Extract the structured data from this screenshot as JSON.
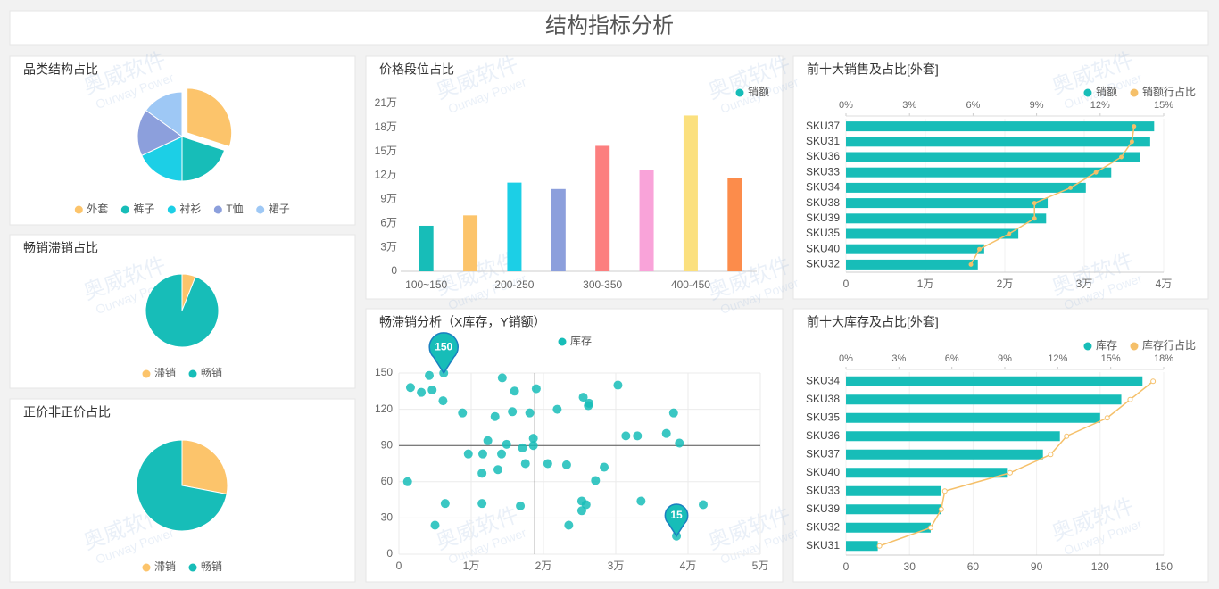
{
  "title": "结构指标分析",
  "watermark": {
    "brand": "奥威软件",
    "sub": "Ourway Power"
  },
  "chart_data": [
    {
      "type": "pie",
      "title": "品类结构占比",
      "categories": [
        "外套",
        "裤子",
        "衬衫",
        "T恤",
        "裙子"
      ],
      "values": [
        30,
        20,
        18,
        17,
        15
      ],
      "colors": [
        "#fcc46b",
        "#17bdb8",
        "#1ccfe6",
        "#8c9fdc",
        "#9ec8f5"
      ],
      "explode_first": true
    },
    {
      "type": "pie",
      "title": "畅销滞销占比",
      "categories": [
        "滞销",
        "畅销"
      ],
      "values": [
        6,
        94
      ],
      "colors": [
        "#fcc46b",
        "#17bdb8"
      ]
    },
    {
      "type": "pie",
      "title": "正价非正价占比",
      "categories": [
        "滞销",
        "畅销"
      ],
      "values": [
        28,
        72
      ],
      "colors": [
        "#fcc46b",
        "#17bdb8"
      ]
    },
    {
      "type": "bar",
      "title": "价格段位占比",
      "categories": [
        "100~150",
        null,
        "200-250",
        null,
        "300-350",
        null,
        "400-450",
        null
      ],
      "series": [
        {
          "name": "销额",
          "color": "#17bdb8",
          "values": [
            57000,
            70000,
            111000,
            103000,
            157000,
            127000,
            195000,
            117000
          ]
        }
      ],
      "bar_colors": [
        "#17bdb8",
        "#fcc46b",
        "#1ccfe6",
        "#8c9fdc",
        "#fc7f7f",
        "#f9a3d9",
        "#fbe07e",
        "#fc8c4b"
      ],
      "ylim": [
        0,
        210000
      ],
      "yticks": [
        0,
        {
          "value": 30000,
          "label": "3万"
        },
        {
          "value": 60000,
          "label": "6万"
        },
        {
          "value": 90000,
          "label": "9万"
        },
        {
          "value": 120000,
          "label": "12万"
        },
        {
          "value": 150000,
          "label": "15万"
        },
        {
          "value": 180000,
          "label": "18万"
        },
        {
          "value": 210000,
          "label": "21万"
        }
      ],
      "grid": false
    },
    {
      "type": "scatter",
      "title": "畅滞销分析（X库存，Y销额）",
      "series": [
        {
          "name": "库存",
          "color": "#17bdb8",
          "x": [
            1600,
            3100,
            4200,
            4600,
            6100,
            8800,
            9600,
            11600,
            11500,
            12300,
            13300,
            14300,
            14200,
            13700,
            14900,
            15700,
            16000,
            17100,
            17500,
            18100,
            18600,
            18600,
            19000,
            20600,
            21900,
            23200,
            23500,
            25500,
            26200,
            26300,
            25300,
            25900,
            25300,
            27200,
            28400,
            30300,
            31400,
            33000,
            33500,
            37000,
            38000,
            38800,
            42100,
            1200,
            5000,
            6400,
            11500,
            16800,
            6200,
            38400
          ],
          "values": [
            138,
            134,
            148,
            136,
            127,
            117,
            83,
            83,
            67,
            94,
            114,
            146,
            83,
            70,
            91,
            118,
            135,
            88,
            75,
            117,
            96,
            90,
            137,
            75,
            120,
            74,
            24,
            130,
            123,
            125,
            44,
            41,
            36,
            61,
            72,
            140,
            98,
            98,
            44,
            100,
            117,
            92,
            41,
            60,
            24,
            42,
            42,
            40,
            150,
            15
          ]
        }
      ],
      "xlim": [
        0,
        50000
      ],
      "xticks": [
        0,
        {
          "value": 10000,
          "label": "1万"
        },
        {
          "value": 20000,
          "label": "2万"
        },
        {
          "value": 30000,
          "label": "3万"
        },
        {
          "value": 40000,
          "label": "4万"
        },
        {
          "value": 50000,
          "label": "5万"
        }
      ],
      "ylim": [
        0,
        150
      ],
      "yticks": [
        0,
        30,
        60,
        90,
        120,
        150
      ],
      "grid": true,
      "mark_points": [
        {
          "x": 6200,
          "y": 150
        },
        {
          "x": 38400,
          "y": 15
        }
      ],
      "mark_lines": {
        "x": 18800,
        "y": 90
      }
    },
    {
      "type": "bar",
      "horizontal": true,
      "title": "前十大销售及占比[外套]",
      "categories": [
        "SKU37",
        "SKU31",
        "SKU36",
        "SKU33",
        "SKU34",
        "SKU38",
        "SKU39",
        "SKU35",
        "SKU40",
        "SKU32"
      ],
      "series": [
        {
          "name": "销额",
          "color": "#17bdb8",
          "values": [
            38800,
            38300,
            37000,
            33400,
            30200,
            25400,
            25200,
            21700,
            17400,
            16600
          ]
        },
        {
          "name": "销额行占比",
          "color": "#f5c06a",
          "type": "line",
          "axis": "x2",
          "values": [
            13.6,
            13.5,
            13.0,
            11.8,
            10.6,
            8.9,
            8.9,
            7.7,
            6.3,
            5.9
          ]
        }
      ],
      "xlim": [
        0,
        40000
      ],
      "xticks": [
        0,
        {
          "value": 10000,
          "label": "1万"
        },
        {
          "value": 20000,
          "label": "2万"
        },
        {
          "value": 30000,
          "label": "3万"
        },
        {
          "value": 40000,
          "label": "4万"
        }
      ],
      "x2lim": [
        0,
        15
      ],
      "x2ticks": [
        {
          "value": 0,
          "label": "0%"
        },
        {
          "value": 3,
          "label": "3%"
        },
        {
          "value": 6,
          "label": "6%"
        },
        {
          "value": 9,
          "label": "9%"
        },
        {
          "value": 12,
          "label": "12%"
        },
        {
          "value": 15,
          "label": "15%"
        }
      ]
    },
    {
      "type": "bar",
      "horizontal": true,
      "title": "前十大库存及占比[外套]",
      "categories": [
        "SKU34",
        "SKU38",
        "SKU35",
        "SKU36",
        "SKU37",
        "SKU40",
        "SKU33",
        "SKU39",
        "SKU32",
        "SKU31"
      ],
      "series": [
        {
          "name": "库存",
          "color": "#17bdb8",
          "values": [
            140,
            130,
            120,
            101,
            93,
            76,
            45,
            45,
            40,
            15
          ]
        },
        {
          "name": "库存行占比",
          "color": "#f5c06a",
          "type": "line",
          "axis": "x2",
          "hollow_markers": true,
          "values": [
            17.4,
            16.1,
            14.8,
            12.5,
            11.6,
            9.3,
            5.6,
            5.4,
            4.8,
            1.9
          ]
        }
      ],
      "xlim": [
        0,
        150
      ],
      "xticks": [
        0,
        30,
        60,
        90,
        120,
        150
      ],
      "x2lim": [
        0,
        18
      ],
      "x2ticks": [
        {
          "value": 0,
          "label": "0%"
        },
        {
          "value": 3,
          "label": "3%"
        },
        {
          "value": 6,
          "label": "6%"
        },
        {
          "value": 9,
          "label": "9%"
        },
        {
          "value": 12,
          "label": "12%"
        },
        {
          "value": 15,
          "label": "15%"
        },
        {
          "value": 18,
          "label": "18%"
        }
      ]
    }
  ]
}
